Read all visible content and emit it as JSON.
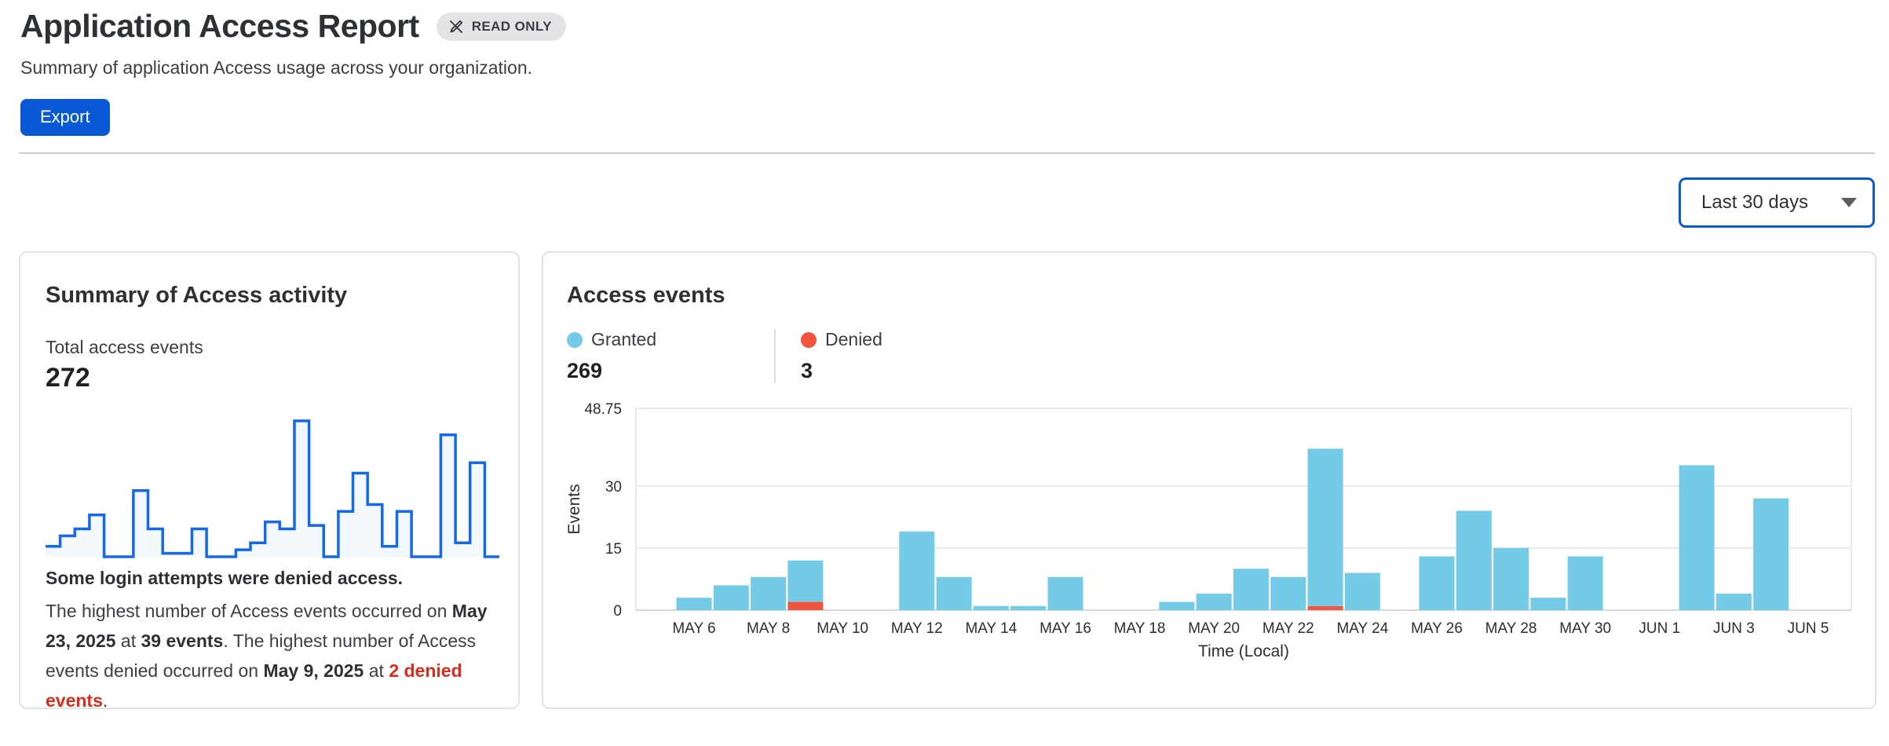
{
  "page": {
    "title": "Application Access Report",
    "badge": "READ ONLY",
    "subtitle": "Summary of application Access usage across your organization.",
    "export_label": "Export",
    "time_range_selected": "Last 30 days"
  },
  "summary_card": {
    "title": "Summary of Access activity",
    "metric_label": "Total access events",
    "metric_value": "272",
    "alert_title": "Some login attempts were denied access.",
    "message_parts": [
      {
        "t": "The highest number of Access events occurred on "
      },
      {
        "t": "May 23, 2025",
        "b": true
      },
      {
        "t": " at "
      },
      {
        "t": "39 events",
        "b": true
      },
      {
        "t": ". The highest number of Access events denied occurred on "
      },
      {
        "t": "May 9, 2025",
        "b": true
      },
      {
        "t": " at "
      },
      {
        "t": "2 denied events",
        "r": true
      },
      {
        "t": "."
      }
    ],
    "sparkline_color": "#1569e8",
    "sparkline_fill": "#f3f8fd"
  },
  "events_card": {
    "title": "Access events",
    "legend": [
      {
        "label": "Granted",
        "value": "269",
        "color": "#74cbe8"
      },
      {
        "label": "Denied",
        "value": "3",
        "color": "#f1553f"
      }
    ]
  },
  "chart_data": {
    "type": "bar",
    "stacked": true,
    "title": "Access events",
    "xlabel": "Time (Local)",
    "ylabel": "Events",
    "ylim": [
      0,
      48.75
    ],
    "y_ticks": [
      0,
      15,
      30,
      48.75
    ],
    "grid": true,
    "legend_position": "top",
    "categories": [
      "May 6",
      "May 7",
      "May 8",
      "May 9",
      "May 10",
      "May 11",
      "May 12",
      "May 13",
      "May 14",
      "May 15",
      "May 16",
      "May 17",
      "May 18",
      "May 19",
      "May 20",
      "May 21",
      "May 22",
      "May 23",
      "May 24",
      "May 25",
      "May 26",
      "May 27",
      "May 28",
      "May 29",
      "May 30",
      "May 31",
      "Jun 1",
      "Jun 2",
      "Jun 3",
      "Jun 4",
      "Jun 5"
    ],
    "x_tick_labels": [
      "MAY 6",
      "MAY 8",
      "MAY 10",
      "MAY 12",
      "MAY 14",
      "MAY 16",
      "MAY 18",
      "MAY 20",
      "MAY 22",
      "MAY 24",
      "MAY 26",
      "MAY 28",
      "MAY 30",
      "JUN 1",
      "JUN 3",
      "JUN 5"
    ],
    "series": [
      {
        "name": "Denied",
        "color": "#f1553f",
        "values": [
          0,
          0,
          0,
          2,
          0,
          0,
          0,
          0,
          0,
          0,
          0,
          0,
          0,
          0,
          0,
          0,
          0,
          1,
          0,
          0,
          0,
          0,
          0,
          0,
          0,
          0,
          0,
          0,
          0,
          0,
          0
        ]
      },
      {
        "name": "Granted",
        "color": "#74cbe8",
        "values": [
          3,
          6,
          8,
          10,
          0,
          0,
          19,
          8,
          1,
          1,
          8,
          0,
          0,
          2,
          4,
          10,
          8,
          38,
          9,
          0,
          13,
          24,
          15,
          3,
          13,
          0,
          0,
          35,
          4,
          27,
          0
        ]
      }
    ]
  }
}
